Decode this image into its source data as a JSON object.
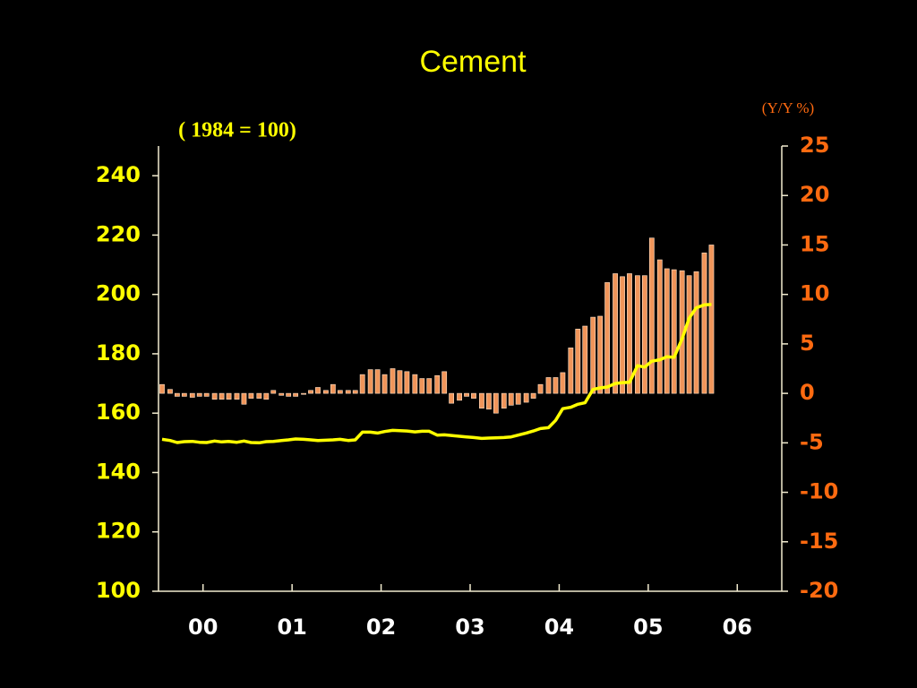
{
  "chart_data": {
    "type": "bar-line",
    "title": "Cement",
    "y_label": "( 1984 = 100)",
    "y2_label": "(Y/Y %)",
    "xlim": [
      2000,
      2007
    ],
    "xticks": [
      {
        "value": 2000.5,
        "label": "00"
      },
      {
        "value": 2001.5,
        "label": "01"
      },
      {
        "value": 2002.5,
        "label": "02"
      },
      {
        "value": 2003.5,
        "label": "03"
      },
      {
        "value": 2004.5,
        "label": "04"
      },
      {
        "value": 2005.5,
        "label": "05"
      },
      {
        "value": 2006.5,
        "label": "06"
      }
    ],
    "ylim": [
      100,
      250
    ],
    "yticks": [
      100,
      120,
      140,
      160,
      180,
      200,
      220,
      240
    ],
    "y2lim": [
      -20,
      25
    ],
    "y2ticks": [
      -20,
      -15,
      -10,
      -5,
      0,
      5,
      10,
      15,
      20,
      25
    ],
    "x": [
      2000.04,
      2000.13,
      2000.21,
      2000.29,
      2000.38,
      2000.46,
      2000.54,
      2000.63,
      2000.71,
      2000.79,
      2000.88,
      2000.96,
      2001.04,
      2001.13,
      2001.21,
      2001.29,
      2001.38,
      2001.46,
      2001.54,
      2001.63,
      2001.71,
      2001.79,
      2001.88,
      2001.96,
      2002.04,
      2002.13,
      2002.21,
      2002.29,
      2002.38,
      2002.46,
      2002.54,
      2002.63,
      2002.71,
      2002.79,
      2002.88,
      2002.96,
      2003.04,
      2003.13,
      2003.21,
      2003.29,
      2003.38,
      2003.46,
      2003.54,
      2003.63,
      2003.71,
      2003.79,
      2003.88,
      2003.96,
      2004.04,
      2004.13,
      2004.21,
      2004.29,
      2004.38,
      2004.46,
      2004.54,
      2004.63,
      2004.71,
      2004.79,
      2004.88,
      2004.96,
      2005.04,
      2005.13,
      2005.21,
      2005.29,
      2005.38,
      2005.46,
      2005.54,
      2005.63,
      2005.71,
      2005.79,
      2005.88,
      2005.96,
      2006.04,
      2006.13,
      2006.21
    ],
    "series": [
      {
        "kind": "bar",
        "axis": "y2",
        "color": "#f0955a",
        "values": [
          0.9,
          0.4,
          -0.3,
          -0.3,
          -0.4,
          -0.3,
          -0.3,
          -0.6,
          -0.6,
          -0.6,
          -0.6,
          -1.1,
          -0.5,
          -0.5,
          -0.6,
          0.3,
          -0.2,
          -0.3,
          -0.3,
          -0.1,
          0.3,
          0.6,
          0.3,
          0.9,
          0.3,
          0.3,
          0.3,
          1.9,
          2.4,
          2.4,
          1.9,
          2.5,
          2.3,
          2.2,
          1.9,
          1.5,
          1.5,
          1.8,
          2.2,
          -1.0,
          -0.7,
          -0.3,
          -0.5,
          -1.5,
          -1.6,
          -2.0,
          -1.5,
          -1.2,
          -1.1,
          -0.9,
          -0.5,
          0.9,
          1.6,
          1.6,
          2.1,
          4.6,
          6.5,
          6.8,
          7.7,
          7.8,
          11.2,
          12.1,
          11.8,
          12.1,
          11.9,
          11.9,
          15.7,
          13.5,
          12.6,
          12.5,
          12.4,
          11.9,
          12.3,
          14.2,
          15.0
        ]
      },
      {
        "kind": "line",
        "axis": "y",
        "color": "#ffff00",
        "values": [
          151.2,
          150.8,
          150.1,
          150.4,
          150.5,
          150.2,
          150.1,
          150.6,
          150.3,
          150.5,
          150.2,
          150.6,
          150.1,
          150.0,
          150.4,
          150.5,
          150.8,
          151.0,
          151.3,
          151.2,
          151.0,
          150.8,
          150.9,
          151.0,
          151.2,
          150.8,
          151.0,
          153.6,
          153.6,
          153.3,
          153.8,
          154.2,
          154.1,
          154.0,
          153.7,
          153.9,
          153.9,
          152.6,
          152.7,
          152.5,
          152.2,
          152.0,
          151.8,
          151.5,
          151.6,
          151.7,
          151.8,
          152.0,
          152.6,
          153.3,
          154.0,
          154.8,
          155.1,
          157.6,
          161.5,
          162.0,
          163.0,
          163.5,
          168.0,
          168.5,
          168.8,
          170.0,
          170.3,
          170.4,
          176.0,
          175.5,
          177.5,
          178.0,
          179.0,
          178.8,
          185.0,
          192.0,
          195.5,
          196.5,
          196.6
        ]
      }
    ],
    "y_color": "#ffff00",
    "y2_color": "#ff6a10",
    "x_color": "#ffffff"
  }
}
